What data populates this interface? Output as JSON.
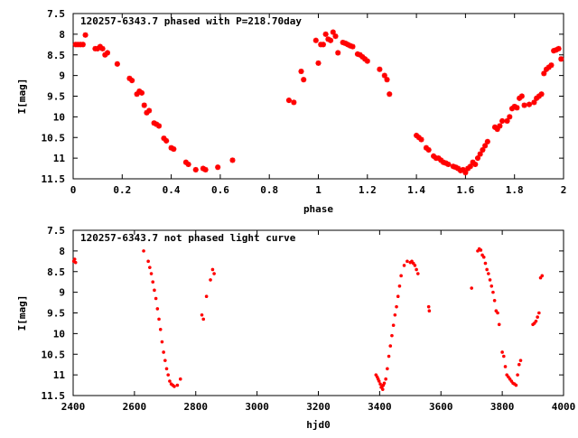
{
  "chart_data": [
    {
      "type": "scatter",
      "title": "120257-6343.7 phased with P=218.70day",
      "xlabel": "phase",
      "ylabel": "I[mag]",
      "xlim": [
        0,
        2
      ],
      "ylim": [
        7.5,
        11.5
      ],
      "y_inverted": true,
      "xticks": [
        "0",
        "0.2",
        "0.4",
        "0.6",
        "0.8",
        "1",
        "1.2",
        "1.4",
        "1.6",
        "1.8",
        "2"
      ],
      "yticks": [
        "7.5",
        "8",
        "8.5",
        "9",
        "9.5",
        "10",
        "10.5",
        "11",
        "11.5"
      ],
      "marker": "star",
      "color": "#ff0000",
      "series": [
        {
          "x": [
            0.01,
            0.02,
            0.03,
            0.04,
            0.05,
            0.09,
            0.1,
            0.11,
            0.12,
            0.13,
            0.14,
            0.18,
            0.23,
            0.24,
            0.26,
            0.27,
            0.28,
            0.29,
            0.3,
            0.31,
            0.33,
            0.34,
            0.35,
            0.37,
            0.38,
            0.4,
            0.41,
            0.46,
            0.47,
            0.5,
            0.53,
            0.54,
            0.59,
            0.65,
            0.88,
            0.9,
            0.93,
            0.94,
            0.99,
            1.0,
            1.01,
            1.02,
            1.03,
            1.04,
            1.05,
            1.06,
            1.07,
            1.08,
            1.1,
            1.11,
            1.12,
            1.13,
            1.14,
            1.16,
            1.17,
            1.18,
            1.19,
            1.2,
            1.25,
            1.27,
            1.28,
            1.29,
            1.4,
            1.41,
            1.42,
            1.44,
            1.45,
            1.47,
            1.48,
            1.49,
            1.5,
            1.51,
            1.52,
            1.53,
            1.55,
            1.56,
            1.57,
            1.58,
            1.59,
            1.6,
            1.61,
            1.62,
            1.63,
            1.64,
            1.65,
            1.66,
            1.67,
            1.68,
            1.69,
            1.72,
            1.73,
            1.74,
            1.75,
            1.77,
            1.78,
            1.79,
            1.8,
            1.81,
            1.82,
            1.83,
            1.84,
            1.86,
            1.88,
            1.89,
            1.9,
            1.91,
            1.92,
            1.93,
            1.94,
            1.95,
            1.96,
            1.97,
            1.98,
            1.99
          ],
          "y": [
            8.25,
            8.25,
            8.25,
            8.25,
            8.02,
            8.35,
            8.35,
            8.3,
            8.35,
            8.5,
            8.45,
            8.72,
            9.07,
            9.12,
            9.45,
            9.38,
            9.42,
            9.72,
            9.9,
            9.85,
            10.15,
            10.18,
            10.22,
            10.52,
            10.58,
            10.75,
            10.78,
            11.1,
            11.15,
            11.28,
            11.25,
            11.28,
            11.22,
            11.05,
            9.6,
            9.65,
            8.9,
            9.1,
            8.15,
            8.7,
            8.25,
            8.25,
            8.0,
            8.12,
            8.15,
            7.95,
            8.05,
            8.45,
            8.2,
            8.22,
            8.25,
            8.28,
            8.3,
            8.48,
            8.5,
            8.55,
            8.6,
            8.65,
            8.85,
            9.0,
            9.1,
            9.45,
            10.45,
            10.5,
            10.55,
            10.75,
            10.8,
            10.95,
            11.0,
            11.0,
            11.05,
            11.1,
            11.12,
            11.15,
            11.2,
            11.22,
            11.25,
            11.3,
            11.28,
            11.35,
            11.25,
            11.2,
            11.1,
            11.15,
            11.0,
            10.9,
            10.8,
            10.7,
            10.6,
            10.25,
            10.3,
            10.22,
            10.1,
            10.1,
            10.0,
            9.8,
            9.75,
            9.78,
            9.55,
            9.5,
            9.72,
            9.7,
            9.65,
            9.55,
            9.5,
            9.45,
            8.95,
            8.85,
            8.8,
            8.75,
            8.4,
            8.38,
            8.35,
            8.6
          ]
        }
      ]
    },
    {
      "type": "scatter",
      "title": "120257-6343.7 not phased light curve",
      "xlabel": "hjd0",
      "ylabel": "I[mag]",
      "xlim": [
        2400,
        4000
      ],
      "ylim": [
        7.5,
        11.5
      ],
      "y_inverted": true,
      "xticks": [
        "2400",
        "2600",
        "2800",
        "3000",
        "3200",
        "3400",
        "3600",
        "3800",
        "4000"
      ],
      "yticks": [
        "7.5",
        "8",
        "8.5",
        "9",
        "9.5",
        "10",
        "10.5",
        "11",
        "11.5"
      ],
      "marker": "dot",
      "color": "#ff0000",
      "series": [
        {
          "x": [
            2402,
            2405,
            2408,
            2630,
            2645,
            2650,
            2655,
            2660,
            2665,
            2670,
            2675,
            2680,
            2685,
            2690,
            2695,
            2700,
            2705,
            2710,
            2715,
            2720,
            2725,
            2730,
            2740,
            2750,
            2820,
            2825,
            2835,
            2848,
            2855,
            2860,
            3388,
            3392,
            3395,
            3398,
            3402,
            3405,
            3408,
            3410,
            3412,
            3415,
            3420,
            3425,
            3430,
            3435,
            3440,
            3445,
            3450,
            3455,
            3460,
            3465,
            3470,
            3480,
            3490,
            3500,
            3505,
            3510,
            3515,
            3520,
            3525,
            3560,
            3562,
            3700,
            3720,
            3725,
            3730,
            3735,
            3740,
            3745,
            3750,
            3755,
            3760,
            3765,
            3770,
            3775,
            3780,
            3785,
            3790,
            3800,
            3805,
            3810,
            3815,
            3820,
            3825,
            3830,
            3835,
            3840,
            3845,
            3850,
            3855,
            3860,
            3900,
            3905,
            3910,
            3915,
            3920,
            3925,
            3930
          ],
          "y": [
            8.25,
            8.2,
            8.28,
            8.0,
            8.25,
            8.4,
            8.55,
            8.75,
            8.95,
            9.15,
            9.4,
            9.65,
            9.9,
            10.2,
            10.45,
            10.65,
            10.85,
            11.0,
            11.15,
            11.22,
            11.25,
            11.28,
            11.25,
            11.1,
            9.55,
            9.65,
            9.1,
            8.7,
            8.45,
            8.55,
            11.0,
            11.05,
            11.1,
            11.15,
            11.22,
            11.3,
            11.28,
            11.35,
            11.25,
            11.2,
            11.1,
            10.85,
            10.55,
            10.3,
            10.05,
            9.8,
            9.55,
            9.35,
            9.1,
            8.85,
            8.6,
            8.35,
            8.25,
            8.28,
            8.25,
            8.3,
            8.35,
            8.45,
            8.55,
            9.35,
            9.45,
            8.9,
            8.0,
            7.95,
            7.98,
            8.1,
            8.15,
            8.3,
            8.45,
            8.55,
            8.7,
            8.85,
            9.0,
            9.2,
            9.45,
            9.5,
            9.78,
            10.45,
            10.55,
            10.8,
            11.0,
            11.05,
            11.1,
            11.15,
            11.2,
            11.22,
            11.25,
            11.0,
            10.75,
            10.65,
            9.78,
            9.75,
            9.7,
            9.6,
            9.5,
            8.65,
            8.6
          ]
        }
      ]
    }
  ]
}
